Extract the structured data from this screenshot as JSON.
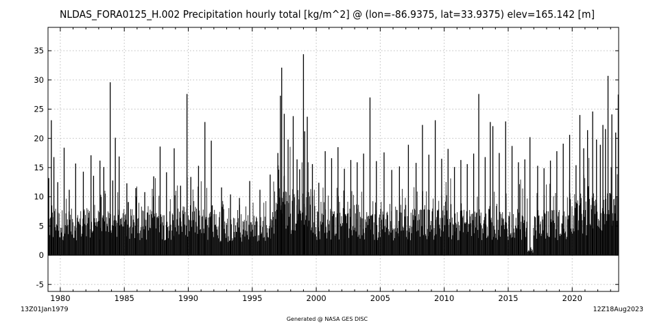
{
  "chart_data": {
    "type": "bar",
    "title": "NLDAS_FORA0125_H.002 Precipitation hourly total [kg/m^2] @ (lon=-86.9375, lat=33.9375) elev=165.142 [m]",
    "xlabel": "",
    "ylabel": "",
    "start_label": "13Z01Jan1979",
    "end_label": "12Z18Aug2023",
    "footer": "Generated @ NASA GES DISC",
    "x_ticks": [
      "1980",
      "1985",
      "1990",
      "1995",
      "2000",
      "2005",
      "2010",
      "2015",
      "2020"
    ],
    "y_ticks": [
      "-5",
      "0",
      "5",
      "10",
      "15",
      "20",
      "25",
      "30",
      "35"
    ],
    "ylim": [
      -6.2,
      39
    ],
    "xlim": [
      1979.04,
      2023.63
    ],
    "grid": true,
    "bar_color": "#000000",
    "x": [
      1979.1,
      1979.3,
      1979.5,
      1979.8,
      1980.3,
      1980.7,
      1981.2,
      1981.8,
      1982.4,
      1982.6,
      1983.1,
      1983.4,
      1983.9,
      1984.1,
      1984.3,
      1984.6,
      1985.2,
      1985.9,
      1986.6,
      1987.3,
      1987.8,
      1988.3,
      1988.9,
      1989.4,
      1989.9,
      1990.2,
      1990.8,
      1991.3,
      1991.8,
      1992.6,
      1993.3,
      1994.0,
      1994.8,
      1995.6,
      1996.4,
      1997.0,
      1997.2,
      1997.3,
      1997.5,
      1997.8,
      1998.2,
      1998.5,
      1998.7,
      1999.0,
      1999.1,
      1999.3,
      1999.7,
      2000.2,
      2000.7,
      2001.2,
      2001.7,
      2002.2,
      2002.7,
      2003.2,
      2003.7,
      2004.2,
      2004.7,
      2005.3,
      2005.9,
      2006.5,
      2007.2,
      2007.8,
      2008.3,
      2008.8,
      2009.3,
      2009.8,
      2010.3,
      2010.8,
      2011.3,
      2011.8,
      2012.3,
      2012.7,
      2013.2,
      2013.6,
      2013.8,
      2014.3,
      2014.8,
      2015.3,
      2015.8,
      2016.3,
      2016.7,
      2017.3,
      2017.8,
      2018.3,
      2018.8,
      2019.3,
      2019.8,
      2020.3,
      2020.6,
      2020.9,
      2021.2,
      2021.6,
      2021.9,
      2022.2,
      2022.4,
      2022.6,
      2022.8,
      2023.1,
      2023.4,
      2023.6
    ],
    "values": [
      13.2,
      23.1,
      16.8,
      12.5,
      18.4,
      11.2,
      15.7,
      14.3,
      17.1,
      13.6,
      16.2,
      15.1,
      29.6,
      12.8,
      20.1,
      16.9,
      12.3,
      11.5,
      10.8,
      13.5,
      18.6,
      14.2,
      18.3,
      11.9,
      27.6,
      13.4,
      15.3,
      22.8,
      19.6,
      11.6,
      10.4,
      9.8,
      12.7,
      11.2,
      13.8,
      17.5,
      27.3,
      32.1,
      24.2,
      19.8,
      23.8,
      16.4,
      14.7,
      34.4,
      21.2,
      23.7,
      15.6,
      12.4,
      17.8,
      16.6,
      18.5,
      14.8,
      16.3,
      15.9,
      17.4,
      27.0,
      16.1,
      17.6,
      14.6,
      15.2,
      18.9,
      15.8,
      22.3,
      17.2,
      23.1,
      16.5,
      18.2,
      15.1,
      16.3,
      15.6,
      17.4,
      27.6,
      16.8,
      22.8,
      22.1,
      17.5,
      22.9,
      18.7,
      15.9,
      16.4,
      20.2,
      15.3,
      14.9,
      16.2,
      17.8,
      19.1,
      20.6,
      15.4,
      24.0,
      18.3,
      21.4,
      24.6,
      19.8,
      18.9,
      22.3,
      21.6,
      30.7,
      24.1,
      21.0,
      27.5
    ]
  }
}
